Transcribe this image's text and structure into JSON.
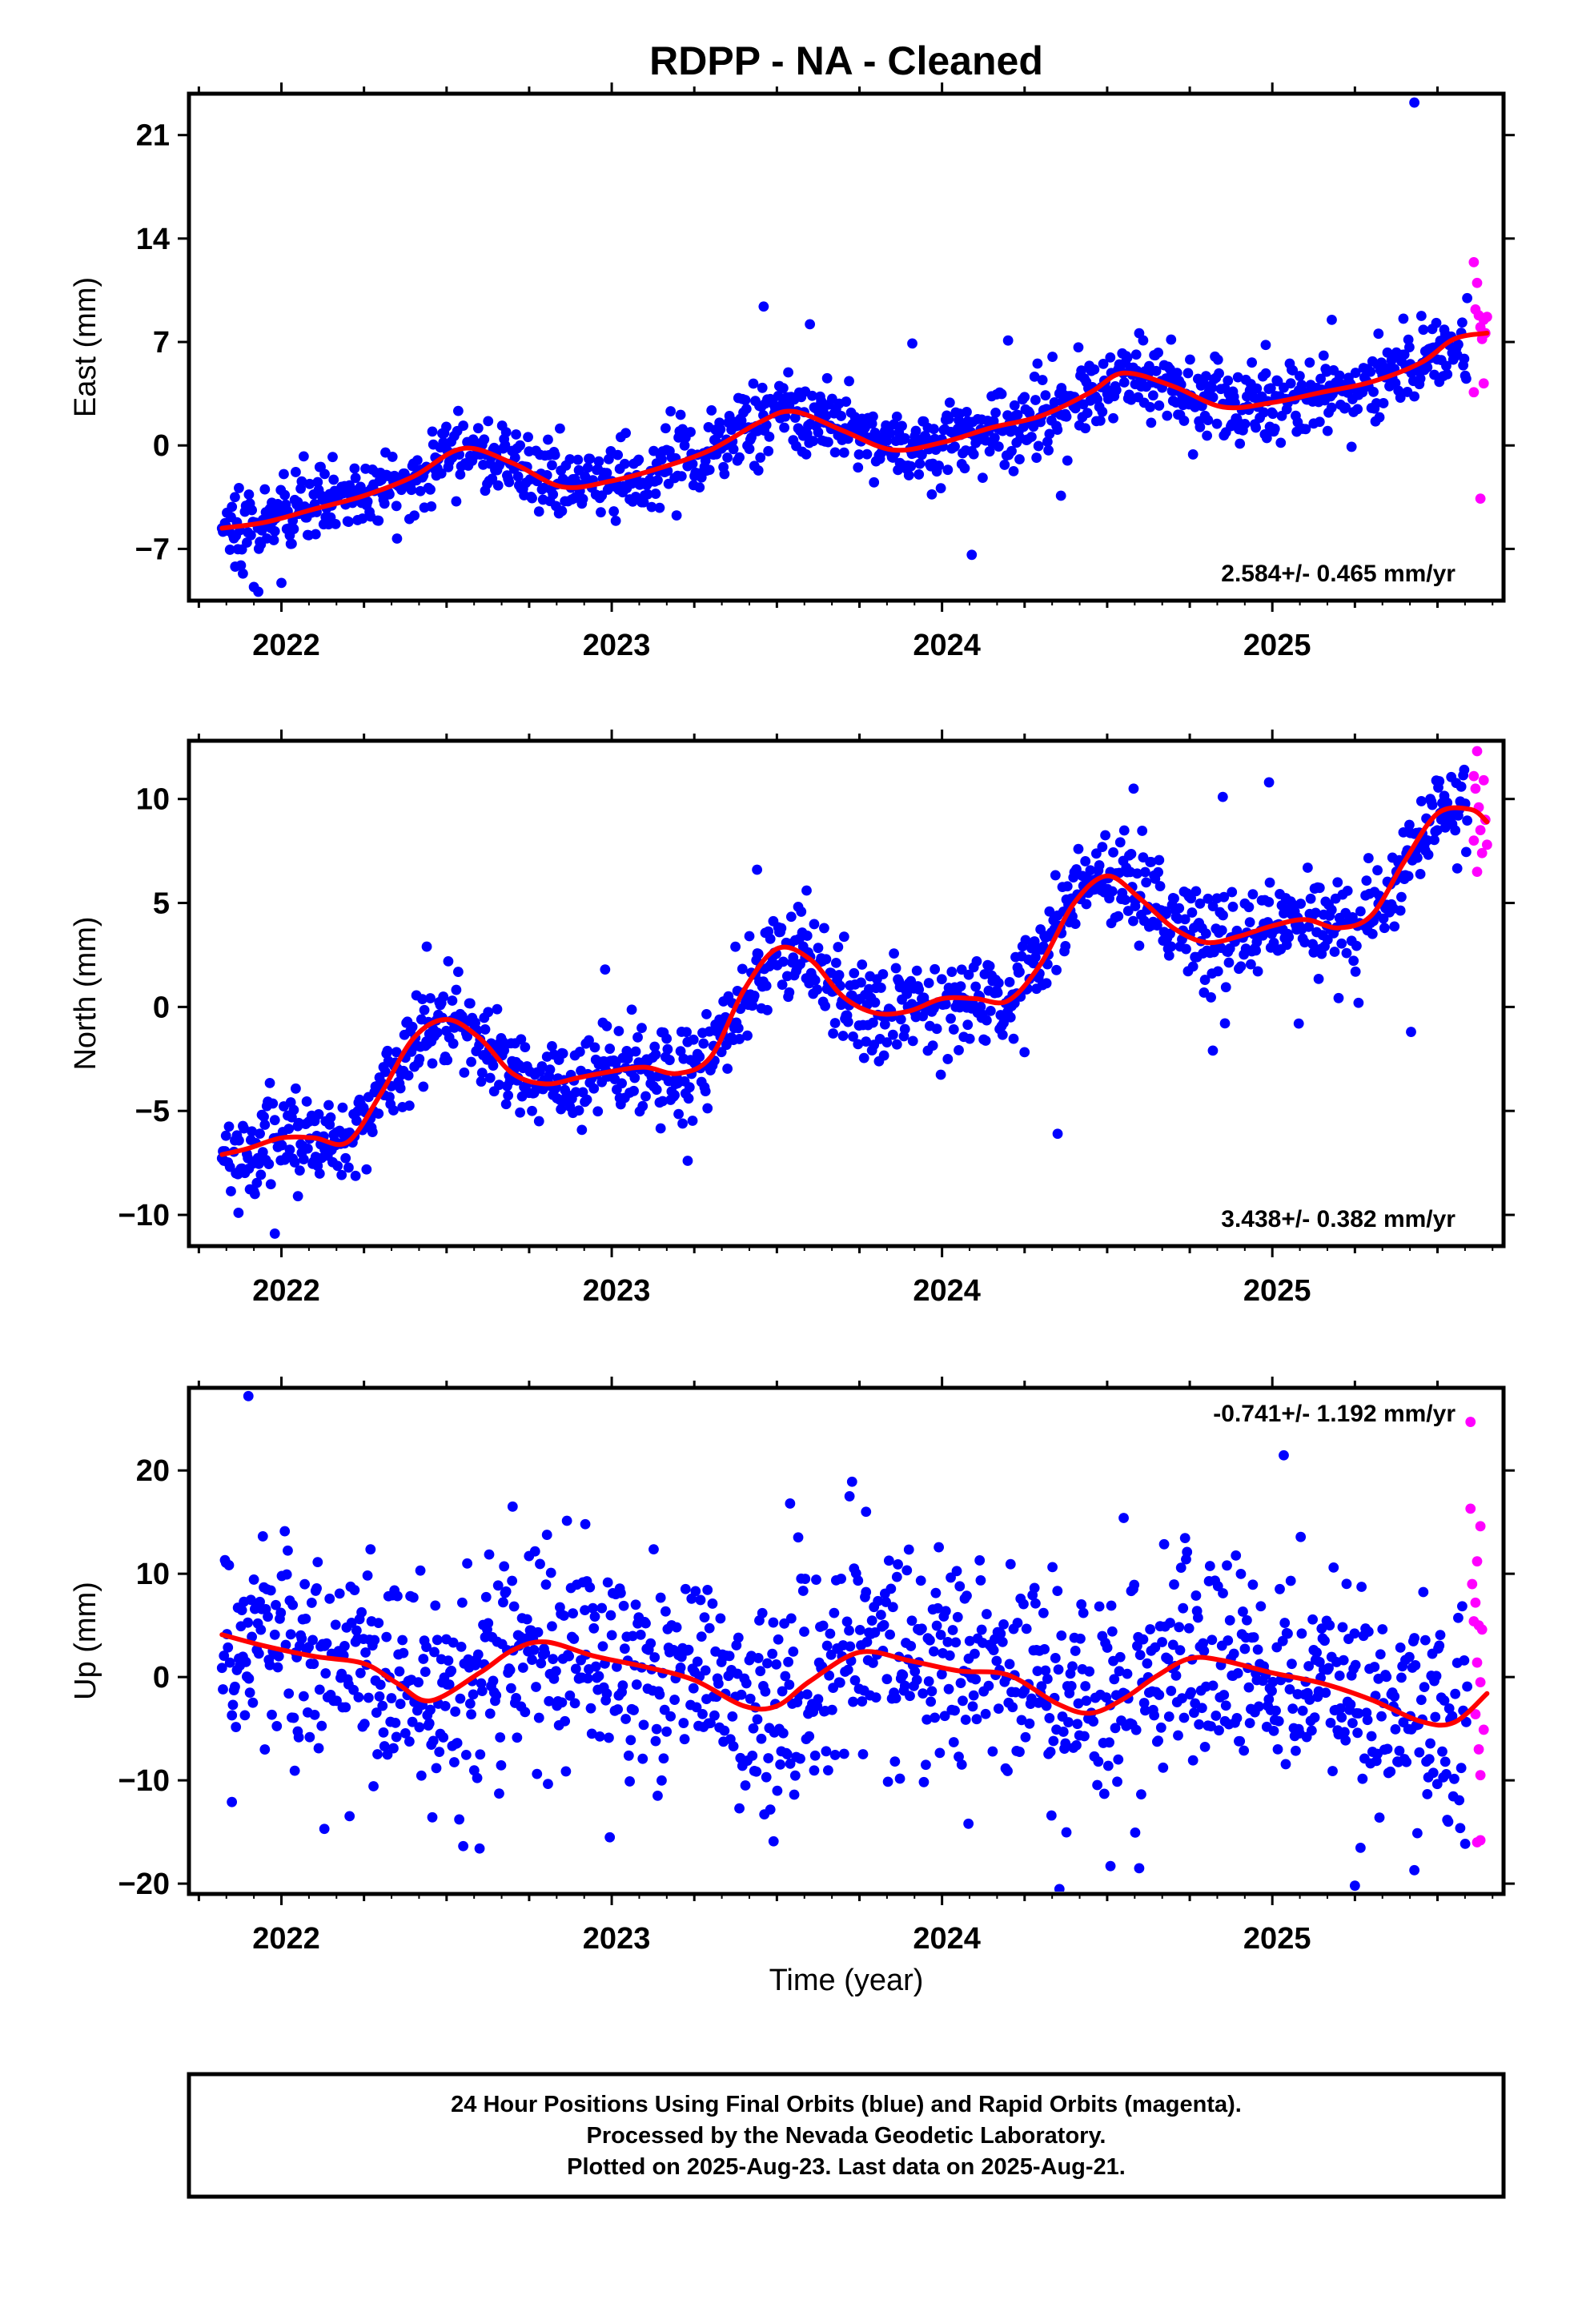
{
  "title": "RDPP  - NA - Cleaned",
  "xlabel": "Time (year)",
  "footer": {
    "line1": "24 Hour Positions Using Final Orbits (blue) and Rapid Orbits (magenta).",
    "line2": "Processed by the Nevada Geodetic Laboratory.",
    "line3": "Plotted on 2025-Aug-23. Last data on 2025-Aug-21."
  },
  "colors": {
    "final_orbits": "#0000ff",
    "rapid_orbits": "#ff00ff",
    "fit": "#ff0000"
  },
  "chart_data": [
    {
      "type": "scatter",
      "ylabel": "East (mm)",
      "rate_label": "2.584+/- 0.465 mm/yr",
      "rate_position": "bottom-right",
      "xlim": [
        2021.72,
        2025.7
      ],
      "ylim": [
        -10.5,
        23.8
      ],
      "xticks": [
        2022,
        2023,
        2024,
        2025
      ],
      "yticks": [
        -7,
        0,
        7,
        14,
        21
      ],
      "rate_mm_per_yr": 2.584,
      "final_points": {
        "x_range": [
          2021.82,
          2025.59
        ],
        "count": 1250,
        "trend_start": -5.8,
        "scatter_sd": 1.3,
        "outliers": [
          [
            2025.43,
            23.2
          ],
          [
            2021.93,
            -9.9
          ],
          [
            2022.0,
            -9.3
          ],
          [
            2023.46,
            9.4
          ],
          [
            2023.6,
            8.2
          ],
          [
            2023.91,
            6.9
          ],
          [
            2024.09,
            -7.4
          ],
          [
            2024.36,
            -3.4
          ],
          [
            2024.2,
            7.1
          ],
          [
            2024.98,
            6.8
          ],
          [
            2025.18,
            8.5
          ],
          [
            2022.35,
            -6.3
          ],
          [
            2021.86,
            -8.2
          ]
        ]
      },
      "rapid_points": [
        [
          2025.61,
          12.4
        ],
        [
          2025.62,
          11.0
        ],
        [
          2025.615,
          9.2
        ],
        [
          2025.625,
          8.8
        ],
        [
          2025.63,
          8.0
        ],
        [
          2025.635,
          7.2
        ],
        [
          2025.64,
          8.5
        ],
        [
          2025.645,
          7.6
        ],
        [
          2025.61,
          3.6
        ],
        [
          2025.64,
          4.2
        ],
        [
          2025.65,
          8.7
        ],
        [
          2025.63,
          -3.6
        ]
      ],
      "fit_curve": {
        "x": [
          2021.82,
          2021.95,
          2022.1,
          2022.25,
          2022.4,
          2022.55,
          2022.7,
          2022.85,
          2023.0,
          2023.15,
          2023.3,
          2023.45,
          2023.55,
          2023.7,
          2023.85,
          2024.0,
          2024.15,
          2024.3,
          2024.45,
          2024.55,
          2024.7,
          2024.85,
          2025.0,
          2025.15,
          2025.3,
          2025.45,
          2025.55,
          2025.65
        ],
        "y": [
          -5.6,
          -5.2,
          -4.3,
          -3.4,
          -2.1,
          -0.2,
          -1.2,
          -2.8,
          -2.4,
          -1.5,
          -0.3,
          1.6,
          2.3,
          1.0,
          -0.3,
          0.2,
          1.2,
          2.0,
          3.6,
          4.9,
          4.0,
          2.6,
          2.9,
          3.6,
          4.3,
          5.6,
          7.2,
          7.6
        ]
      }
    },
    {
      "type": "scatter",
      "ylabel": "North (mm)",
      "rate_label": "3.438+/- 0.382 mm/yr",
      "rate_position": "bottom-right",
      "xlim": [
        2021.72,
        2025.7
      ],
      "ylim": [
        -11.5,
        12.8
      ],
      "xticks": [
        2022,
        2023,
        2024,
        2025
      ],
      "yticks": [
        -10,
        -5,
        0,
        5,
        10
      ],
      "rate_mm_per_yr": 3.438,
      "final_points": {
        "x_range": [
          2021.82,
          2025.59
        ],
        "count": 1250,
        "trend_start": -6.9,
        "scatter_sd": 1.15,
        "outliers": [
          [
            2021.98,
            -10.9
          ],
          [
            2021.87,
            -9.9
          ],
          [
            2022.05,
            -9.1
          ],
          [
            2022.98,
            1.8
          ],
          [
            2023.23,
            -7.4
          ],
          [
            2023.44,
            6.6
          ],
          [
            2023.59,
            5.6
          ],
          [
            2024.35,
            -6.1
          ],
          [
            2024.82,
            -2.1
          ],
          [
            2025.42,
            -1.2
          ],
          [
            2024.58,
            10.5
          ],
          [
            2024.85,
            10.1
          ],
          [
            2024.99,
            10.8
          ],
          [
            2025.08,
            -0.8
          ],
          [
            2022.44,
            2.9
          ]
        ]
      },
      "rapid_points": [
        [
          2025.62,
          12.3
        ],
        [
          2025.61,
          11.1
        ],
        [
          2025.615,
          10.5
        ],
        [
          2025.625,
          9.6
        ],
        [
          2025.63,
          8.5
        ],
        [
          2025.635,
          7.4
        ],
        [
          2025.64,
          10.9
        ],
        [
          2025.645,
          9.0
        ],
        [
          2025.62,
          6.5
        ],
        [
          2025.61,
          8.0
        ],
        [
          2025.65,
          7.8
        ]
      ],
      "fit_curve": {
        "x": [
          2021.82,
          2021.9,
          2022.0,
          2022.1,
          2022.2,
          2022.3,
          2022.4,
          2022.5,
          2022.6,
          2022.7,
          2022.8,
          2022.9,
          2023.0,
          2023.1,
          2023.2,
          2023.3,
          2023.4,
          2023.5,
          2023.6,
          2023.7,
          2023.8,
          2023.9,
          2024.0,
          2024.1,
          2024.2,
          2024.3,
          2024.4,
          2024.5,
          2024.6,
          2024.7,
          2024.8,
          2024.9,
          2025.0,
          2025.1,
          2025.2,
          2025.3,
          2025.4,
          2025.5,
          2025.6,
          2025.65
        ],
        "y": [
          -7.1,
          -6.8,
          -6.3,
          -6.3,
          -6.5,
          -4.2,
          -1.5,
          -0.6,
          -1.5,
          -3.2,
          -3.7,
          -3.4,
          -3.1,
          -2.9,
          -3.2,
          -2.4,
          0.8,
          2.8,
          2.3,
          0.5,
          -0.3,
          -0.2,
          0.4,
          0.4,
          0.3,
          2.1,
          5.0,
          6.3,
          5.2,
          3.8,
          3.1,
          3.4,
          3.9,
          4.2,
          3.8,
          4.4,
          7.0,
          9.3,
          9.5,
          8.9
        ]
      }
    },
    {
      "type": "scatter",
      "ylabel": "Up (mm)",
      "rate_label": "-0.741+/- 1.192 mm/yr",
      "rate_position": "top-right",
      "xlim": [
        2021.72,
        2025.7
      ],
      "ylim": [
        -21,
        28
      ],
      "xticks": [
        2022,
        2023,
        2024,
        2025
      ],
      "yticks": [
        -20,
        -10,
        0,
        10,
        20
      ],
      "rate_mm_per_yr": -0.741,
      "final_points": {
        "x_range": [
          2021.82,
          2025.59
        ],
        "count": 1250,
        "trend_start": 4.0,
        "scatter_sd": 5.2,
        "outliers": [
          [
            2021.9,
            27.2
          ],
          [
            2022.7,
            16.5
          ],
          [
            2022.92,
            14.8
          ],
          [
            2023.54,
            16.8
          ],
          [
            2023.72,
            17.5
          ],
          [
            2023.77,
            16.0
          ],
          [
            2024.55,
            15.4
          ],
          [
            2025.25,
            -20.2
          ],
          [
            2025.43,
            -18.7
          ],
          [
            2024.51,
            -18.3
          ],
          [
            2022.6,
            -16.6
          ],
          [
            2023.49,
            -15.9
          ],
          [
            2024.08,
            -14.2
          ],
          [
            2022.13,
            -14.7
          ],
          [
            2021.85,
            -12.1
          ]
        ]
      },
      "rapid_points": [
        [
          2025.6,
          24.7
        ],
        [
          2025.6,
          16.3
        ],
        [
          2025.63,
          14.6
        ],
        [
          2025.62,
          11.2
        ],
        [
          2025.605,
          9.0
        ],
        [
          2025.615,
          7.2
        ],
        [
          2025.625,
          5.0
        ],
        [
          2025.635,
          4.6
        ],
        [
          2025.61,
          5.4
        ],
        [
          2025.62,
          1.4
        ],
        [
          2025.63,
          -0.5
        ],
        [
          2025.615,
          -3.6
        ],
        [
          2025.625,
          -7.0
        ],
        [
          2025.63,
          -9.5
        ],
        [
          2025.62,
          -16.0
        ],
        [
          2025.63,
          -15.8
        ],
        [
          2025.64,
          -5.1
        ]
      ],
      "fit_curve": {
        "x": [
          2021.82,
          2021.95,
          2022.1,
          2022.25,
          2022.35,
          2022.45,
          2022.6,
          2022.7,
          2022.8,
          2022.95,
          2023.1,
          2023.25,
          2023.4,
          2023.5,
          2023.6,
          2023.75,
          2023.9,
          2024.05,
          2024.2,
          2024.35,
          2024.45,
          2024.55,
          2024.65,
          2024.75,
          2024.85,
          2025.0,
          2025.15,
          2025.3,
          2025.45,
          2025.55,
          2025.65
        ],
        "y": [
          4.1,
          3.0,
          2.0,
          1.3,
          -0.6,
          -2.3,
          0.4,
          2.6,
          3.4,
          2.0,
          1.0,
          -0.3,
          -2.8,
          -2.8,
          -0.4,
          2.4,
          1.6,
          0.6,
          0.2,
          -2.6,
          -3.5,
          -2.1,
          0.1,
          1.8,
          1.6,
          0.4,
          -0.6,
          -2.2,
          -4.3,
          -4.4,
          -1.6
        ]
      }
    }
  ]
}
